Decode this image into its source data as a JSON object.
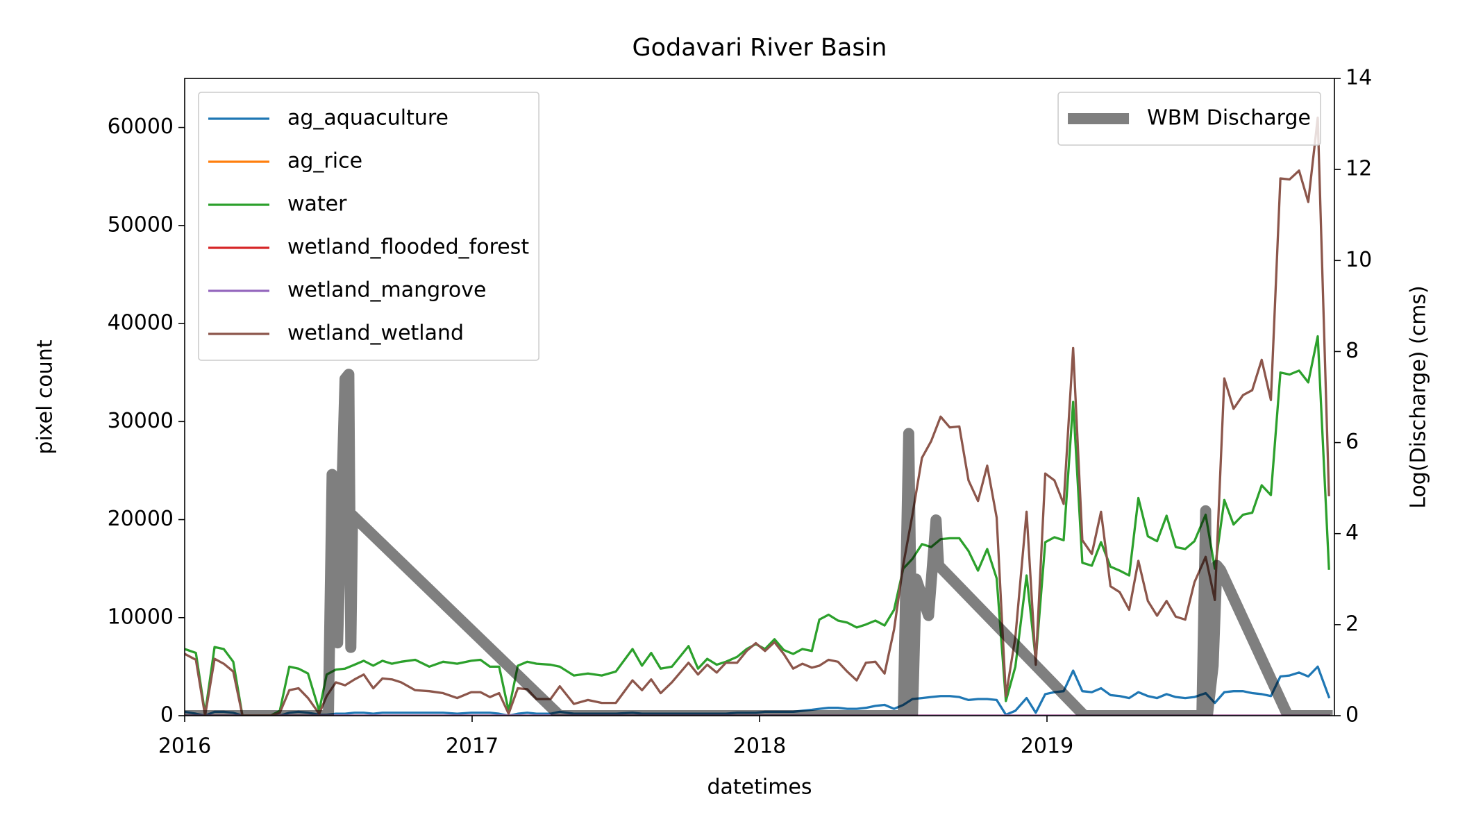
{
  "chart_data": {
    "type": "line",
    "title": "Godavari River Basin",
    "xlabel": "datetimes",
    "ylabel": "pixel count",
    "y2label": "Log(Discharge) (cms)",
    "xlim": [
      2016,
      2020
    ],
    "xticks": [
      2016,
      2017,
      2018,
      2019
    ],
    "ylim": [
      0,
      65000
    ],
    "yticks": [
      0,
      10000,
      20000,
      30000,
      40000,
      50000,
      60000
    ],
    "y2lim": [
      0,
      14
    ],
    "y2ticks": [
      0,
      2,
      4,
      6,
      8,
      10,
      12,
      14
    ],
    "grid": false,
    "legend_loc": "upper left",
    "legend2_loc": "upper right",
    "x": [
      2016.0,
      2016.039,
      2016.071,
      2016.104,
      2016.136,
      2016.169,
      2016.201,
      2016.299,
      2016.331,
      2016.364,
      2016.396,
      2016.429,
      2016.468,
      2016.494,
      2016.526,
      2016.558,
      2016.591,
      2016.623,
      2016.656,
      2016.688,
      2016.721,
      2016.753,
      2016.802,
      2016.851,
      2016.899,
      2016.948,
      2016.997,
      2017.029,
      2017.062,
      2017.094,
      2017.127,
      2017.159,
      2017.192,
      2017.224,
      2017.273,
      2017.305,
      2017.354,
      2017.403,
      2017.451,
      2017.5,
      2017.558,
      2017.591,
      2017.623,
      2017.656,
      2017.695,
      2017.753,
      2017.786,
      2017.818,
      2017.851,
      2017.883,
      2017.922,
      2017.955,
      2017.987,
      2018.019,
      2018.052,
      2018.084,
      2018.117,
      2018.149,
      2018.182,
      2018.208,
      2018.24,
      2018.273,
      2018.305,
      2018.338,
      2018.37,
      2018.403,
      2018.435,
      2018.468,
      2018.5,
      2018.532,
      2018.565,
      2018.597,
      2018.63,
      2018.662,
      2018.695,
      2018.727,
      2018.76,
      2018.792,
      2018.825,
      2018.857,
      2018.89,
      2018.929,
      2018.961,
      2018.994,
      2019.026,
      2019.058,
      2019.091,
      2019.123,
      2019.156,
      2019.188,
      2019.221,
      2019.253,
      2019.286,
      2019.318,
      2019.351,
      2019.383,
      2019.416,
      2019.448,
      2019.481,
      2019.513,
      2019.552,
      2019.584,
      2019.617,
      2019.649,
      2019.682,
      2019.714,
      2019.747,
      2019.779,
      2019.812,
      2019.844,
      2019.877,
      2019.909,
      2019.942,
      2019.981
    ],
    "series": [
      {
        "name": "ag_aquaculture",
        "color": "#1f77b4",
        "values": [
          400,
          200,
          0,
          400,
          400,
          300,
          0,
          0,
          0,
          300,
          400,
          300,
          100,
          100,
          200,
          200,
          300,
          300,
          200,
          300,
          300,
          300,
          300,
          300,
          300,
          200,
          300,
          300,
          300,
          200,
          0,
          200,
          300,
          200,
          200,
          400,
          200,
          200,
          200,
          200,
          300,
          200,
          200,
          200,
          200,
          200,
          200,
          200,
          200,
          200,
          300,
          300,
          300,
          400,
          400,
          400,
          400,
          500,
          600,
          700,
          800,
          800,
          700,
          700,
          800,
          1000,
          1100,
          700,
          1100,
          1700,
          1800,
          1900,
          2000,
          2000,
          1900,
          1600,
          1700,
          1700,
          1600,
          100,
          500,
          1800,
          300,
          2200,
          2400,
          2500,
          4600,
          2500,
          2400,
          2800,
          2100,
          2000,
          1800,
          2400,
          2000,
          1800,
          2200,
          1900,
          1800,
          1900,
          2300,
          1300,
          2400,
          2500,
          2500,
          2300,
          2200,
          2000,
          4000,
          4100,
          4400,
          4000,
          5000,
          1900
        ]
      },
      {
        "name": "ag_rice",
        "color": "#ff7f0e",
        "values": [
          0,
          0,
          0,
          0,
          0,
          0,
          0,
          0,
          0,
          0,
          0,
          0,
          0,
          0,
          0,
          0,
          0,
          0,
          0,
          0,
          0,
          0,
          0,
          0,
          0,
          0,
          0,
          0,
          0,
          0,
          0,
          0,
          0,
          0,
          0,
          0,
          0,
          0,
          0,
          0,
          0,
          0,
          0,
          0,
          0,
          0,
          0,
          0,
          0,
          0,
          0,
          0,
          0,
          0,
          0,
          0,
          0,
          0,
          0,
          0,
          0,
          0,
          0,
          0,
          0,
          0,
          0,
          0,
          0,
          0,
          0,
          0,
          0,
          0,
          0,
          0,
          0,
          0,
          0,
          0,
          0,
          0,
          0,
          0,
          0,
          0,
          0,
          0,
          0,
          0,
          0,
          0,
          0,
          0,
          0,
          0,
          0,
          0,
          0,
          0,
          0,
          0,
          0,
          0,
          0,
          0,
          0,
          0,
          0,
          0,
          0,
          0,
          0,
          0
        ]
      },
      {
        "name": "water",
        "color": "#2ca02c",
        "values": [
          6800,
          6400,
          200,
          7000,
          6800,
          5500,
          0,
          0,
          500,
          5000,
          4800,
          4300,
          500,
          4200,
          4700,
          4800,
          5200,
          5600,
          5100,
          5600,
          5300,
          5500,
          5700,
          5000,
          5500,
          5300,
          5600,
          5700,
          5000,
          5000,
          500,
          5100,
          5500,
          5300,
          5200,
          5000,
          4100,
          4300,
          4100,
          4500,
          6800,
          5100,
          6400,
          4800,
          5000,
          7100,
          4800,
          5800,
          5200,
          5500,
          6000,
          6800,
          7300,
          6800,
          7800,
          6700,
          6300,
          6800,
          6600,
          9800,
          10300,
          9700,
          9500,
          9000,
          9300,
          9700,
          9200,
          10800,
          15000,
          16000,
          17500,
          17200,
          18000,
          18100,
          18100,
          16800,
          14800,
          17000,
          14000,
          1500,
          5000,
          14300,
          5700,
          17700,
          18200,
          17900,
          32000,
          15600,
          15300,
          17700,
          15200,
          14800,
          14300,
          22200,
          18300,
          17800,
          20400,
          17200,
          17000,
          17800,
          20500,
          15000,
          22000,
          19500,
          20500,
          20700,
          23500,
          22500,
          35000,
          34800,
          35200,
          34000,
          38700,
          15000
        ]
      },
      {
        "name": "wetland_flooded_forest",
        "color": "#d62728",
        "values": [
          0,
          0,
          0,
          0,
          0,
          0,
          0,
          0,
          0,
          0,
          0,
          0,
          0,
          0,
          0,
          0,
          0,
          0,
          0,
          0,
          0,
          0,
          0,
          0,
          0,
          0,
          0,
          0,
          0,
          0,
          0,
          0,
          0,
          0,
          0,
          0,
          0,
          0,
          0,
          0,
          0,
          0,
          0,
          0,
          0,
          0,
          0,
          0,
          0,
          0,
          0,
          0,
          0,
          0,
          0,
          0,
          0,
          0,
          0,
          0,
          0,
          0,
          0,
          0,
          0,
          0,
          0,
          0,
          0,
          0,
          0,
          0,
          0,
          0,
          0,
          0,
          0,
          0,
          0,
          0,
          0,
          0,
          0,
          0,
          0,
          0,
          0,
          0,
          0,
          0,
          0,
          0,
          0,
          0,
          0,
          0,
          0,
          0,
          0,
          0,
          0,
          0,
          0,
          0,
          0,
          0,
          0,
          0,
          0,
          0,
          0,
          0,
          0,
          0
        ]
      },
      {
        "name": "wetland_mangrove",
        "color": "#9467bd",
        "values": [
          0,
          0,
          0,
          0,
          0,
          0,
          0,
          0,
          0,
          0,
          0,
          0,
          0,
          0,
          0,
          0,
          0,
          0,
          0,
          0,
          0,
          0,
          0,
          0,
          0,
          0,
          0,
          0,
          0,
          0,
          0,
          0,
          0,
          0,
          0,
          0,
          0,
          0,
          0,
          0,
          0,
          0,
          0,
          0,
          0,
          0,
          0,
          0,
          0,
          0,
          0,
          0,
          0,
          0,
          0,
          0,
          0,
          0,
          0,
          0,
          0,
          0,
          0,
          0,
          0,
          0,
          0,
          0,
          0,
          0,
          0,
          0,
          0,
          0,
          0,
          0,
          0,
          0,
          0,
          0,
          0,
          0,
          0,
          0,
          0,
          0,
          0,
          0,
          0,
          0,
          0,
          0,
          0,
          0,
          0,
          0,
          0,
          0,
          0,
          0,
          0,
          0,
          0,
          0,
          0,
          0,
          0,
          0,
          0,
          0,
          0,
          0,
          0,
          0
        ]
      },
      {
        "name": "wetland_wetland",
        "color": "#8c564b",
        "values": [
          6300,
          5700,
          0,
          5800,
          5300,
          4500,
          0,
          0,
          300,
          2600,
          2800,
          1800,
          200,
          2000,
          3400,
          3100,
          3700,
          4200,
          2800,
          3800,
          3700,
          3400,
          2600,
          2500,
          2300,
          1800,
          2400,
          2400,
          1900,
          2300,
          200,
          2800,
          2700,
          1700,
          1700,
          3000,
          1200,
          1600,
          1300,
          1300,
          3600,
          2600,
          3700,
          2300,
          3400,
          5400,
          4200,
          5200,
          4400,
          5400,
          5400,
          6600,
          7400,
          6600,
          7500,
          6300,
          4800,
          5300,
          4900,
          5100,
          5700,
          5500,
          4500,
          3600,
          5400,
          5500,
          4300,
          8800,
          15400,
          20500,
          26300,
          28000,
          30500,
          29400,
          29500,
          24000,
          21900,
          25500,
          20200,
          2000,
          8000,
          20800,
          5200,
          24700,
          24000,
          21600,
          37500,
          17900,
          16500,
          20800,
          13200,
          12600,
          10800,
          15800,
          11700,
          10200,
          11700,
          10100,
          9800,
          13600,
          16200,
          11800,
          34400,
          31300,
          32700,
          33200,
          36300,
          32200,
          54800,
          54700,
          55600,
          52400,
          61000,
          22500
        ]
      },
      {
        "name": "WBM Discharge",
        "color": "#000000",
        "alpha": 0.5,
        "axis": "y2",
        "x": [
          2016.0,
          2016.5,
          2016.513,
          2016.532,
          2016.558,
          2016.571,
          2016.578,
          2016.584,
          2017.305,
          2018.5,
          2018.519,
          2018.532,
          2018.545,
          2018.588,
          2018.614,
          2018.623,
          2019.13,
          2019.539,
          2019.552,
          2019.558,
          2019.578,
          2019.591,
          2019.604,
          2019.838,
          2019.994
        ],
        "values": [
          0,
          0,
          5.3,
          1.6,
          7.4,
          7.5,
          1.5,
          4.4,
          0,
          0,
          6.2,
          0,
          3.0,
          2.2,
          4.3,
          3.3,
          0,
          0,
          4.5,
          0,
          1.1,
          3.3,
          3.2,
          0,
          0
        ]
      }
    ]
  }
}
